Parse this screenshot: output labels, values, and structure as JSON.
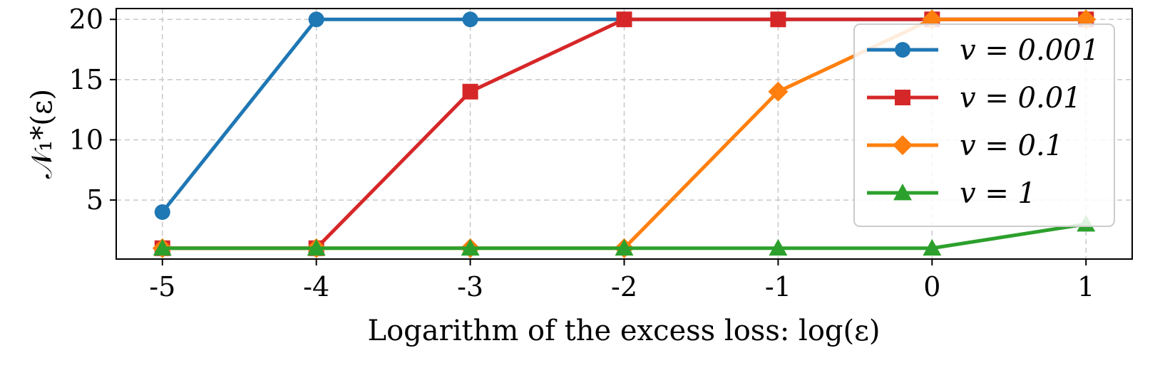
{
  "chart_data": {
    "type": "line",
    "title": "",
    "xlabel": "Logarithm of the excess loss: log(ε)",
    "ylabel": "𝒩₁*(ε)",
    "xlim": [
      -5.3,
      1.3
    ],
    "ylim": [
      0.1,
      20.9
    ],
    "xticks": [
      -5,
      -4,
      -3,
      -2,
      -1,
      0,
      1
    ],
    "xtick_labels": [
      "-5",
      "-4",
      "-3",
      "-2",
      "-1",
      "0",
      "1"
    ],
    "yticks": [
      5,
      10,
      15,
      20
    ],
    "ytick_labels": [
      "5",
      "10",
      "15",
      "20"
    ],
    "grid": true,
    "legend_position": "upper-right",
    "x": [
      -5,
      -4,
      -3,
      -2,
      -1,
      0,
      1
    ],
    "series": [
      {
        "name": "v = 0.001",
        "color": "#1f77b4",
        "marker": "circle",
        "values": [
          4,
          20,
          20,
          20,
          20,
          20,
          20
        ]
      },
      {
        "name": "v = 0.01",
        "color": "#d62728",
        "marker": "square",
        "values": [
          1,
          1,
          14,
          20,
          20,
          20,
          20
        ]
      },
      {
        "name": "v = 0.1",
        "color": "#ff7f0e",
        "marker": "diamond",
        "values": [
          1,
          1,
          1,
          1,
          14,
          20,
          20
        ]
      },
      {
        "name": "v = 1",
        "color": "#2ca02c",
        "marker": "triangle",
        "values": [
          1,
          1,
          1,
          1,
          1,
          1,
          3
        ]
      }
    ]
  }
}
